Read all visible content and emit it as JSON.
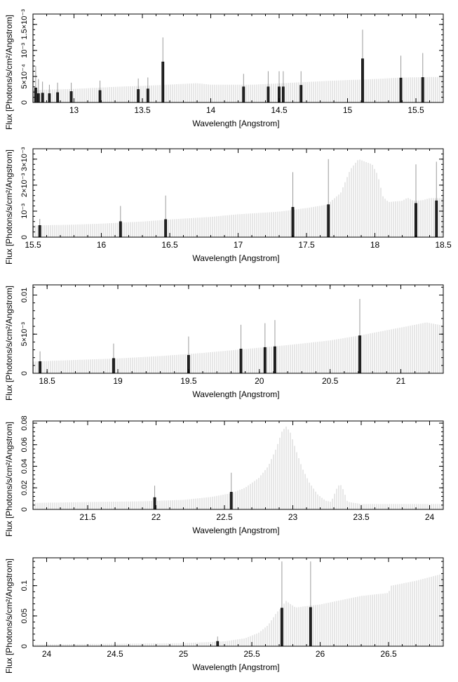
{
  "chart_data": [
    {
      "type": "bar",
      "xlabel": "Wavelength [Angstrom]",
      "ylabel": "Flux [Photons/s/cm²/Angstrom]",
      "xlim": [
        12.7,
        15.7
      ],
      "ylim": [
        0,
        0.0017
      ],
      "xticks": [
        {
          "v": 13,
          "label": "13"
        },
        {
          "v": 13.5,
          "label": "13.5"
        },
        {
          "v": 14,
          "label": "14"
        },
        {
          "v": 14.5,
          "label": "14.5"
        },
        {
          "v": 15,
          "label": "15"
        },
        {
          "v": 15.5,
          "label": "15.5"
        }
      ],
      "yticks": [
        {
          "v": 0,
          "label": "0"
        },
        {
          "v": 0.0005,
          "label": "5×10⁻⁴"
        },
        {
          "v": 0.001,
          "label": "10⁻³"
        },
        {
          "v": 0.0015,
          "label": "1.5×10⁻³"
        }
      ],
      "model": [
        [
          12.7,
          0.00024
        ],
        [
          13.0,
          0.00026
        ],
        [
          13.3,
          0.0003
        ],
        [
          13.6,
          0.00033
        ],
        [
          13.9,
          0.00037
        ],
        [
          14.0,
          0.00034
        ],
        [
          14.3,
          0.00034
        ],
        [
          14.6,
          0.00038
        ],
        [
          14.9,
          0.00042
        ],
        [
          15.2,
          0.00045
        ],
        [
          15.4,
          0.00048
        ],
        [
          15.7,
          0.00049
        ]
      ],
      "lines": [
        [
          12.72,
          0.00028,
          0.0007
        ],
        [
          12.74,
          0.00017,
          0.00045
        ],
        [
          12.77,
          0.00018,
          0.0004
        ],
        [
          12.82,
          0.00017,
          0.00034
        ],
        [
          12.88,
          0.00019,
          0.00038
        ],
        [
          12.98,
          0.00021,
          0.00038
        ],
        [
          13.19,
          0.00023,
          0.00042
        ],
        [
          13.47,
          0.00025,
          0.00046
        ],
        [
          13.54,
          0.00026,
          0.00048
        ],
        [
          13.65,
          0.00078,
          0.00125
        ],
        [
          14.24,
          0.0003,
          0.00055
        ],
        [
          14.42,
          0.0003,
          0.0006
        ],
        [
          14.5,
          0.0003,
          0.0006
        ],
        [
          14.53,
          0.0003,
          0.0006
        ],
        [
          14.66,
          0.00033,
          0.0006
        ],
        [
          15.11,
          0.00084,
          0.0014
        ],
        [
          15.39,
          0.00047,
          0.0009
        ],
        [
          15.55,
          0.00048,
          0.00095
        ]
      ]
    },
    {
      "type": "bar",
      "xlabel": "Wavelength [Angstrom]",
      "ylabel": "Flux [Photons/s/cm²/Angstrom]",
      "xlim": [
        15.5,
        18.5
      ],
      "ylim": [
        0,
        0.0034
      ],
      "xticks": [
        {
          "v": 15.5,
          "label": "15.5"
        },
        {
          "v": 16,
          "label": "16"
        },
        {
          "v": 16.5,
          "label": "16.5"
        },
        {
          "v": 17,
          "label": "17"
        },
        {
          "v": 17.5,
          "label": "17.5"
        },
        {
          "v": 18,
          "label": "18"
        },
        {
          "v": 18.5,
          "label": "18.5"
        }
      ],
      "yticks": [
        {
          "v": 0,
          "label": "0"
        },
        {
          "v": 0.001,
          "label": "10⁻³"
        },
        {
          "v": 0.002,
          "label": "2×10⁻³"
        },
        {
          "v": 0.003,
          "label": "3×10⁻³"
        }
      ],
      "model": [
        [
          15.5,
          0.00045
        ],
        [
          15.8,
          0.00048
        ],
        [
          16.0,
          0.00052
        ],
        [
          16.3,
          0.0006
        ],
        [
          16.5,
          0.00068
        ],
        [
          16.8,
          0.00078
        ],
        [
          17.0,
          0.00088
        ],
        [
          17.3,
          0.00098
        ],
        [
          17.5,
          0.00112
        ],
        [
          17.65,
          0.00125
        ],
        [
          17.75,
          0.0017
        ],
        [
          17.82,
          0.0026
        ],
        [
          17.88,
          0.003
        ],
        [
          17.93,
          0.0029
        ],
        [
          17.98,
          0.0028
        ],
        [
          18.02,
          0.0024
        ],
        [
          18.06,
          0.00155
        ],
        [
          18.1,
          0.00135
        ],
        [
          18.2,
          0.0014
        ],
        [
          18.24,
          0.00152
        ],
        [
          18.28,
          0.0014
        ],
        [
          18.35,
          0.00142
        ],
        [
          18.4,
          0.0015
        ],
        [
          18.5,
          0.0015
        ]
      ],
      "lines": [
        [
          15.55,
          0.00045,
          0.0007
        ],
        [
          16.14,
          0.0006,
          0.0012
        ],
        [
          16.47,
          0.00068,
          0.0016
        ],
        [
          17.4,
          0.00115,
          0.0025
        ],
        [
          17.66,
          0.00125,
          0.003
        ],
        [
          18.3,
          0.0013,
          0.0028
        ],
        [
          18.45,
          0.0014,
          0.0029
        ]
      ]
    },
    {
      "type": "bar",
      "xlabel": "Wavelength [Angstrom]",
      "ylabel": "Flux [Photons/s/cm²/Angstrom]",
      "xlim": [
        18.4,
        21.3
      ],
      "ylim": [
        0,
        0.0113
      ],
      "xticks": [
        {
          "v": 18.5,
          "label": "18.5"
        },
        {
          "v": 19,
          "label": "19"
        },
        {
          "v": 19.5,
          "label": "19.5"
        },
        {
          "v": 20,
          "label": "20"
        },
        {
          "v": 20.5,
          "label": "20.5"
        },
        {
          "v": 21,
          "label": "21"
        }
      ],
      "yticks": [
        {
          "v": 0,
          "label": "0"
        },
        {
          "v": 0.005,
          "label": "5×10⁻³"
        },
        {
          "v": 0.01,
          "label": "0.01"
        }
      ],
      "model": [
        [
          18.4,
          0.0015
        ],
        [
          18.7,
          0.0017
        ],
        [
          19.0,
          0.0019
        ],
        [
          19.3,
          0.0022
        ],
        [
          19.6,
          0.0026
        ],
        [
          19.9,
          0.0031
        ],
        [
          20.2,
          0.0036
        ],
        [
          20.5,
          0.0042
        ],
        [
          20.7,
          0.0048
        ],
        [
          20.9,
          0.0055
        ],
        [
          21.1,
          0.0062
        ],
        [
          21.18,
          0.0065
        ],
        [
          21.3,
          0.0061
        ]
      ],
      "lines": [
        [
          18.45,
          0.0015,
          0.0028
        ],
        [
          18.97,
          0.0019,
          0.0038
        ],
        [
          19.5,
          0.0023,
          0.0047
        ],
        [
          19.87,
          0.0031,
          0.0062
        ],
        [
          20.04,
          0.0033,
          0.0064
        ],
        [
          20.11,
          0.0034,
          0.0068
        ],
        [
          20.71,
          0.0048,
          0.0095
        ]
      ]
    },
    {
      "type": "bar",
      "xlabel": "Wavelength [Angstrom]",
      "ylabel": "Flux [Photons/s/cm²/Angstrom]",
      "xlim": [
        21.1,
        24.1
      ],
      "ylim": [
        0,
        0.082
      ],
      "xticks": [
        {
          "v": 21.5,
          "label": "21.5"
        },
        {
          "v": 22,
          "label": "22"
        },
        {
          "v": 22.5,
          "label": "22.5"
        },
        {
          "v": 23,
          "label": "23"
        },
        {
          "v": 23.5,
          "label": "23.5"
        },
        {
          "v": 24,
          "label": "24"
        }
      ],
      "yticks": [
        {
          "v": 0,
          "label": "0"
        },
        {
          "v": 0.02,
          "label": "0.02"
        },
        {
          "v": 0.04,
          "label": "0.04"
        },
        {
          "v": 0.06,
          "label": "0.06"
        },
        {
          "v": 0.08,
          "label": "0.08"
        }
      ],
      "model": [
        [
          21.1,
          0.006
        ],
        [
          21.5,
          0.0068
        ],
        [
          21.9,
          0.0075
        ],
        [
          22.2,
          0.0088
        ],
        [
          22.4,
          0.0115
        ],
        [
          22.55,
          0.015
        ],
        [
          22.65,
          0.02
        ],
        [
          22.75,
          0.029
        ],
        [
          22.82,
          0.04
        ],
        [
          22.88,
          0.057
        ],
        [
          22.92,
          0.072
        ],
        [
          22.95,
          0.077
        ],
        [
          22.98,
          0.072
        ],
        [
          23.02,
          0.056
        ],
        [
          23.07,
          0.038
        ],
        [
          23.12,
          0.025
        ],
        [
          23.18,
          0.014
        ],
        [
          23.24,
          0.008
        ],
        [
          23.28,
          0.007
        ],
        [
          23.32,
          0.019
        ],
        [
          23.345,
          0.024
        ],
        [
          23.37,
          0.018
        ],
        [
          23.4,
          0.007
        ],
        [
          23.5,
          0.005
        ],
        [
          24.1,
          0.005
        ]
      ],
      "lines": [
        [
          21.99,
          0.011,
          0.022
        ],
        [
          22.55,
          0.016,
          0.034
        ]
      ]
    },
    {
      "type": "bar",
      "xlabel": "Wavelength [Angstrom]",
      "ylabel": "Flux [Photons/s/cm²/Angstrom]",
      "xlim": [
        23.9,
        26.9
      ],
      "ylim": [
        0,
        0.146
      ],
      "xticks": [
        {
          "v": 24,
          "label": "24"
        },
        {
          "v": 24.5,
          "label": "24.5"
        },
        {
          "v": 25,
          "label": "25"
        },
        {
          "v": 25.5,
          "label": "25.5"
        },
        {
          "v": 26,
          "label": "26"
        },
        {
          "v": 26.5,
          "label": "26.5"
        }
      ],
      "yticks": [
        {
          "v": 0,
          "label": "0"
        },
        {
          "v": 0.05,
          "label": "0.05"
        },
        {
          "v": 0.1,
          "label": "0.1"
        }
      ],
      "model": [
        [
          23.9,
          0.003
        ],
        [
          24.5,
          0.004
        ],
        [
          25.0,
          0.005
        ],
        [
          25.3,
          0.008
        ],
        [
          25.45,
          0.013
        ],
        [
          25.55,
          0.022
        ],
        [
          25.62,
          0.035
        ],
        [
          25.68,
          0.055
        ],
        [
          25.72,
          0.065
        ],
        [
          25.75,
          0.075
        ],
        [
          25.78,
          0.07
        ],
        [
          25.82,
          0.064
        ],
        [
          26.0,
          0.069
        ],
        [
          26.3,
          0.083
        ],
        [
          26.5,
          0.088
        ],
        [
          26.52,
          0.1
        ],
        [
          26.7,
          0.108
        ],
        [
          26.9,
          0.12
        ]
      ],
      "lines": [
        [
          25.25,
          0.008,
          0.016
        ],
        [
          25.72,
          0.063,
          0.14
        ],
        [
          25.93,
          0.064,
          0.14
        ]
      ]
    }
  ]
}
